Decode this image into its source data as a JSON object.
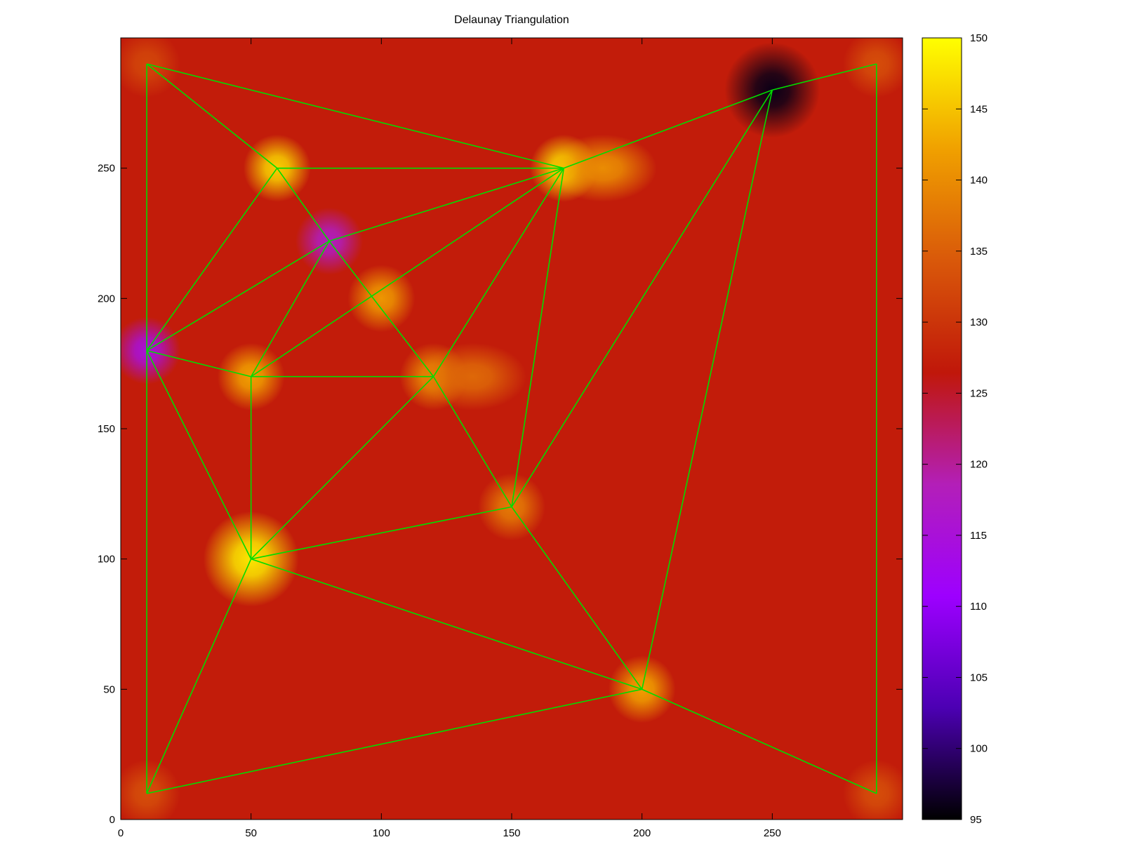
{
  "chart_data": {
    "type": "heatmap",
    "title": "Delaunay Triangulation",
    "xlabel": "",
    "ylabel": "",
    "xlim": [
      0,
      300
    ],
    "ylim": [
      0,
      300
    ],
    "x_ticks": [
      0,
      50,
      100,
      150,
      200,
      250
    ],
    "y_ticks": [
      0,
      50,
      100,
      150,
      200,
      250
    ],
    "colorbar": {
      "range": [
        95,
        150
      ],
      "ticks": [
        95,
        100,
        105,
        110,
        115,
        120,
        125,
        130,
        135,
        140,
        145,
        150
      ],
      "palette": [
        "#000000",
        "#4c00b3",
        "#9d00ff",
        "#b31fb8",
        "#c0170a",
        "#d9580a",
        "#f0a000",
        "#ffff00"
      ]
    },
    "background_value": 127,
    "edge_color": "#00dd00",
    "points": [
      {
        "x": 10,
        "y": 290,
        "value": 132
      },
      {
        "x": 60,
        "y": 250,
        "value": 146
      },
      {
        "x": 170,
        "y": 250,
        "value": 147
      },
      {
        "x": 250,
        "y": 280,
        "value": 96
      },
      {
        "x": 290,
        "y": 290,
        "value": 133
      },
      {
        "x": 80,
        "y": 222,
        "value": 118
      },
      {
        "x": 100,
        "y": 200,
        "value": 141
      },
      {
        "x": 10,
        "y": 180,
        "value": 115
      },
      {
        "x": 50,
        "y": 170,
        "value": 142
      },
      {
        "x": 120,
        "y": 170,
        "value": 140
      },
      {
        "x": 150,
        "y": 120,
        "value": 138
      },
      {
        "x": 50,
        "y": 100,
        "value": 148
      },
      {
        "x": 200,
        "y": 50,
        "value": 142
      },
      {
        "x": 10,
        "y": 10,
        "value": 133
      },
      {
        "x": 290,
        "y": 10,
        "value": 133
      }
    ],
    "extra_blobs": [
      {
        "x": 135,
        "y": 170,
        "value": 136
      },
      {
        "x": 185,
        "y": 250,
        "value": 140
      }
    ],
    "edges": [
      [
        0,
        1
      ],
      [
        0,
        2
      ],
      [
        0,
        7
      ],
      [
        1,
        2
      ],
      [
        1,
        5
      ],
      [
        1,
        7
      ],
      [
        2,
        3
      ],
      [
        2,
        5
      ],
      [
        2,
        8
      ],
      [
        2,
        9
      ],
      [
        2,
        10
      ],
      [
        3,
        4
      ],
      [
        3,
        10
      ],
      [
        3,
        12
      ],
      [
        4,
        14
      ],
      [
        5,
        7
      ],
      [
        5,
        8
      ],
      [
        5,
        9
      ],
      [
        7,
        8
      ],
      [
        7,
        11
      ],
      [
        7,
        13
      ],
      [
        8,
        9
      ],
      [
        8,
        11
      ],
      [
        9,
        10
      ],
      [
        9,
        11
      ],
      [
        10,
        11
      ],
      [
        10,
        12
      ],
      [
        11,
        12
      ],
      [
        11,
        13
      ],
      [
        12,
        13
      ],
      [
        12,
        14
      ]
    ]
  }
}
